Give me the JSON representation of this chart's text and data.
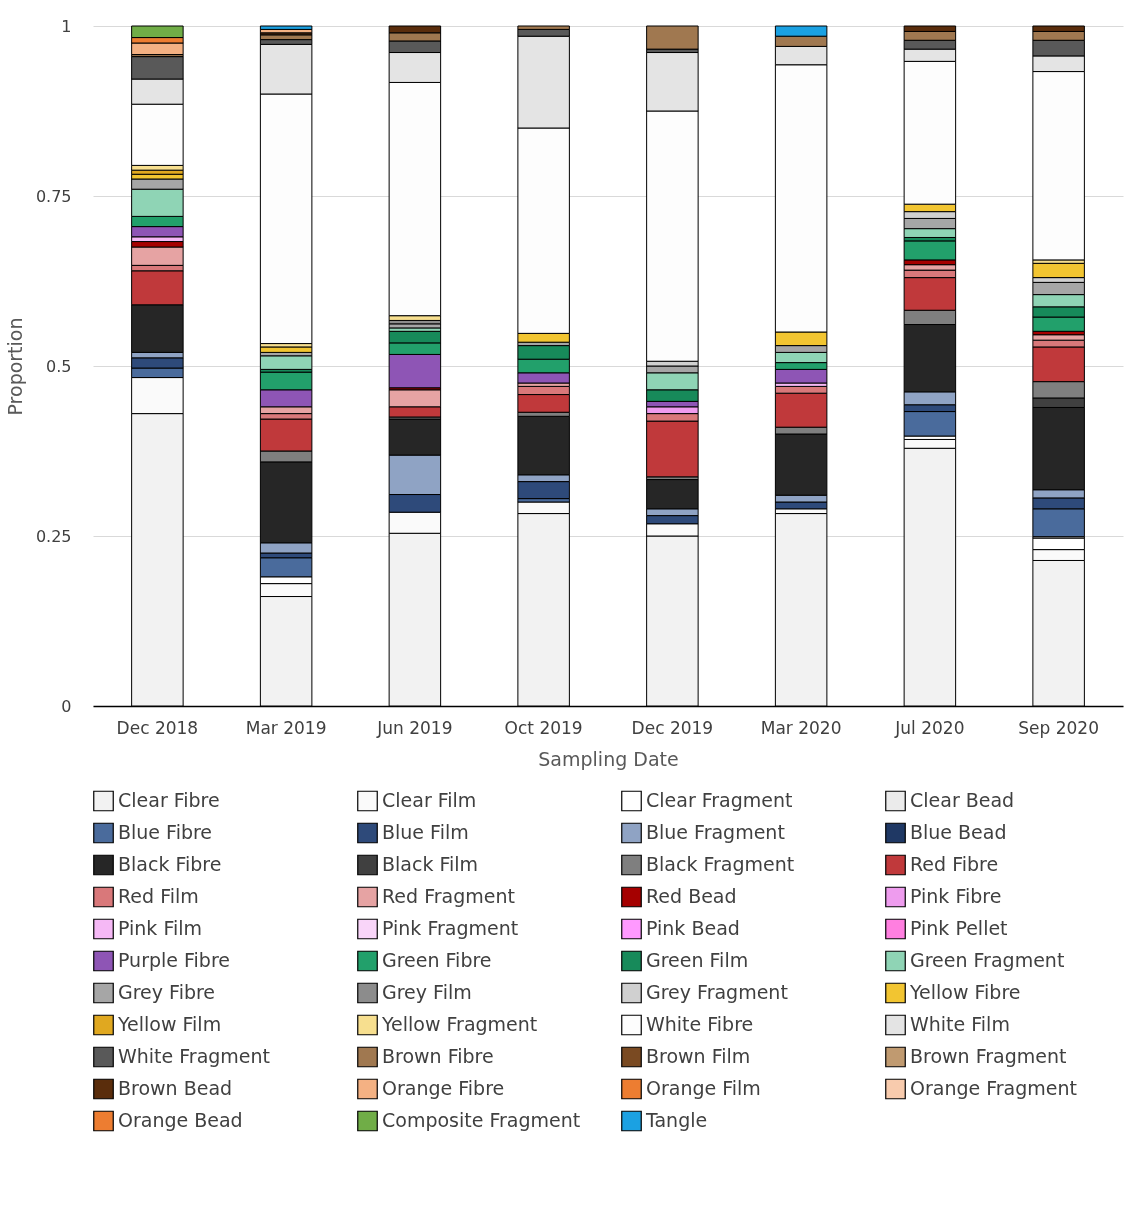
{
  "chart_data": {
    "type": "bar",
    "stacked": true,
    "xlabel": "Sampling Date",
    "ylabel": "Proportion",
    "categories": [
      "Dec 2018",
      "Mar 2019",
      "Jun 2019",
      "Oct 2019",
      "Dec 2019",
      "Mar 2020",
      "Jul 2020",
      "Sep 2020"
    ],
    "ylim": [
      0,
      1
    ],
    "yticks": [
      0,
      0.25,
      0.5,
      0.75,
      1
    ],
    "grid": "y",
    "legend": "bottom",
    "series": [
      {
        "name": "Clear Fibre",
        "color": "#f2f2f2",
        "values": [
          0.43,
          0.161,
          0.254,
          0.283,
          0.25,
          0.283,
          0.379,
          0.214
        ]
      },
      {
        "name": "Clear Film",
        "color": "#fafafa",
        "values": [
          0.053,
          0.019,
          0.031,
          0.017,
          0.018,
          0.007,
          0.013,
          0.016
        ]
      },
      {
        "name": "Clear Fragment",
        "color": "#ffffff",
        "values": [
          null,
          0.01,
          null,
          null,
          null,
          null,
          0.005,
          0.017
        ]
      },
      {
        "name": "Clear Bead",
        "color": "#ebebeb",
        "values": [
          null,
          null,
          null,
          null,
          null,
          null,
          null,
          0.002
        ]
      },
      {
        "name": "Blue Fibre",
        "color": "#4a6b9c",
        "values": [
          0.014,
          0.028,
          null,
          0.005,
          null,
          null,
          0.036,
          0.041
        ]
      },
      {
        "name": "Blue Film",
        "color": "#2e4a7a",
        "values": [
          0.015,
          0.007,
          0.026,
          0.025,
          0.012,
          0.01,
          0.01,
          0.016
        ]
      },
      {
        "name": "Blue Fragment",
        "color": "#8fa3c4",
        "values": [
          0.008,
          0.015,
          0.058,
          0.01,
          0.01,
          0.01,
          0.019,
          0.012
        ]
      },
      {
        "name": "Blue Bead",
        "color": "#1f3864",
        "values": [
          null,
          null,
          null,
          null,
          null,
          null,
          null,
          null
        ]
      },
      {
        "name": "Black Fibre",
        "color": "#262626",
        "values": [
          0.07,
          0.119,
          0.053,
          0.086,
          0.043,
          0.09,
          0.099,
          0.121
        ]
      },
      {
        "name": "Black Film",
        "color": "#404040",
        "values": [
          null,
          null,
          null,
          null,
          null,
          null,
          null,
          0.014
        ]
      },
      {
        "name": "Black Fragment",
        "color": "#7f7f7f",
        "values": [
          null,
          0.016,
          0.003,
          0.006,
          0.004,
          0.01,
          0.021,
          0.024
        ]
      },
      {
        "name": "Red Fibre",
        "color": "#c0393b",
        "values": [
          0.05,
          0.047,
          0.015,
          0.026,
          0.082,
          0.05,
          0.048,
          0.051
        ]
      },
      {
        "name": "Red Film",
        "color": "#d9787a",
        "values": [
          0.008,
          0.008,
          null,
          0.012,
          0.011,
          0.01,
          0.011,
          0.01
        ]
      },
      {
        "name": "Red Fragment",
        "color": "#e6a3a3",
        "values": [
          0.027,
          0.01,
          0.025,
          0.005,
          null,
          null,
          0.008,
          0.008
        ]
      },
      {
        "name": "Red Bead",
        "color": "#a50000",
        "values": [
          0.008,
          null,
          0.003,
          null,
          null,
          null,
          0.007,
          0.005
        ]
      },
      {
        "name": "Pink Fibre",
        "color": "#ee9cee",
        "values": [
          null,
          null,
          null,
          null,
          0.01,
          null,
          null,
          null
        ]
      },
      {
        "name": "Pink Film",
        "color": "#f5b8f5",
        "values": [
          0.007,
          null,
          null,
          null,
          null,
          0.005,
          null,
          null
        ]
      },
      {
        "name": "Pink Fragment",
        "color": "#f9d5f9",
        "values": [
          null,
          null,
          null,
          null,
          null,
          null,
          null,
          null
        ]
      },
      {
        "name": "Pink Bead",
        "color": "#ff99ff",
        "values": [
          null,
          null,
          null,
          null,
          null,
          null,
          null,
          null
        ]
      },
      {
        "name": "Pink Pellet",
        "color": "#ff7fe0",
        "values": [
          null,
          null,
          null,
          null,
          null,
          null,
          null,
          null
        ]
      },
      {
        "name": "Purple Fibre",
        "color": "#8e55b5",
        "values": [
          0.015,
          0.025,
          0.049,
          0.015,
          0.008,
          0.02,
          null,
          null
        ]
      },
      {
        "name": "Green Fibre",
        "color": "#22a06b",
        "values": [
          0.015,
          0.026,
          0.017,
          0.02,
          null,
          0.01,
          0.028,
          0.021
        ]
      },
      {
        "name": "Green Film",
        "color": "#178a5a",
        "values": [
          null,
          0.004,
          0.017,
          0.02,
          0.017,
          null,
          0.005,
          0.015
        ]
      },
      {
        "name": "Green Fragment",
        "color": "#8fd4b5",
        "values": [
          0.04,
          0.02,
          0.005,
          null,
          0.025,
          0.015,
          0.013,
          0.018
        ]
      },
      {
        "name": "Grey Fibre",
        "color": "#a6a6a6",
        "values": [
          0.015,
          0.005,
          0.006,
          0.005,
          0.01,
          0.01,
          0.015,
          0.018
        ]
      },
      {
        "name": "Grey Film",
        "color": "#8c8c8c",
        "values": [
          null,
          null,
          0.005,
          null,
          null,
          null,
          null,
          null
        ]
      },
      {
        "name": "Grey Fragment",
        "color": "#d0d0d0",
        "values": [
          null,
          null,
          null,
          null,
          0.007,
          null,
          0.01,
          0.007
        ]
      },
      {
        "name": "Yellow Fibre",
        "color": "#f2c531",
        "values": [
          0.007,
          0.008,
          null,
          0.013,
          null,
          0.02,
          0.011,
          0.021
        ]
      },
      {
        "name": "Yellow Film",
        "color": "#e0a820",
        "values": [
          0.006,
          null,
          null,
          null,
          null,
          null,
          null,
          null
        ]
      },
      {
        "name": "Yellow Fragment",
        "color": "#f7df8f",
        "values": [
          0.007,
          0.005,
          0.007,
          null,
          null,
          null,
          null,
          0.005
        ]
      },
      {
        "name": "White Fibre",
        "color": "#fdfdfd",
        "values": [
          0.09,
          0.367,
          0.343,
          0.302,
          0.368,
          0.393,
          0.21,
          0.277
        ]
      },
      {
        "name": "White Film",
        "color": "#e4e4e4",
        "values": [
          0.037,
          0.073,
          0.044,
          0.135,
          0.086,
          0.027,
          0.018,
          0.023
        ]
      },
      {
        "name": "White Fragment",
        "color": "#595959",
        "values": [
          0.033,
          0.007,
          0.017,
          0.01,
          0.005,
          null,
          0.013,
          0.023
        ]
      },
      {
        "name": "Brown Fibre",
        "color": "#a07850",
        "values": [
          0.003,
          0.007,
          0.012,
          0.005,
          0.034,
          0.015,
          0.013,
          0.013
        ]
      },
      {
        "name": "Brown Film",
        "color": "#7a4a22",
        "values": [
          null,
          null,
          null,
          null,
          null,
          null,
          null,
          null
        ]
      },
      {
        "name": "Brown Fragment",
        "color": "#c09a70",
        "values": [
          null,
          null,
          null,
          null,
          null,
          null,
          null,
          null
        ]
      },
      {
        "name": "Brown Bead",
        "color": "#5a2d0c",
        "values": [
          null,
          0.003,
          0.01,
          null,
          null,
          null,
          0.008,
          0.008
        ]
      },
      {
        "name": "Orange Fibre",
        "color": "#f4b183",
        "values": [
          0.017,
          0.005,
          null,
          null,
          null,
          null,
          null,
          null
        ]
      },
      {
        "name": "Orange Film",
        "color": "#ed7d31",
        "values": [
          0.008,
          null,
          null,
          null,
          null,
          null,
          null,
          null
        ]
      },
      {
        "name": "Orange Fragment",
        "color": "#f8cbad",
        "values": [
          null,
          null,
          null,
          null,
          null,
          null,
          null,
          null
        ]
      },
      {
        "name": "Orange Bead",
        "color": "#ed7d31",
        "values": [
          null,
          null,
          null,
          null,
          null,
          null,
          null,
          null
        ]
      },
      {
        "name": "Composite Fragment",
        "color": "#70ad47",
        "values": [
          0.017,
          null,
          null,
          null,
          null,
          null,
          null,
          null
        ]
      },
      {
        "name": "Tangle",
        "color": "#1ba1e2",
        "values": [
          null,
          0.005,
          null,
          null,
          null,
          0.015,
          null,
          null
        ]
      }
    ]
  }
}
